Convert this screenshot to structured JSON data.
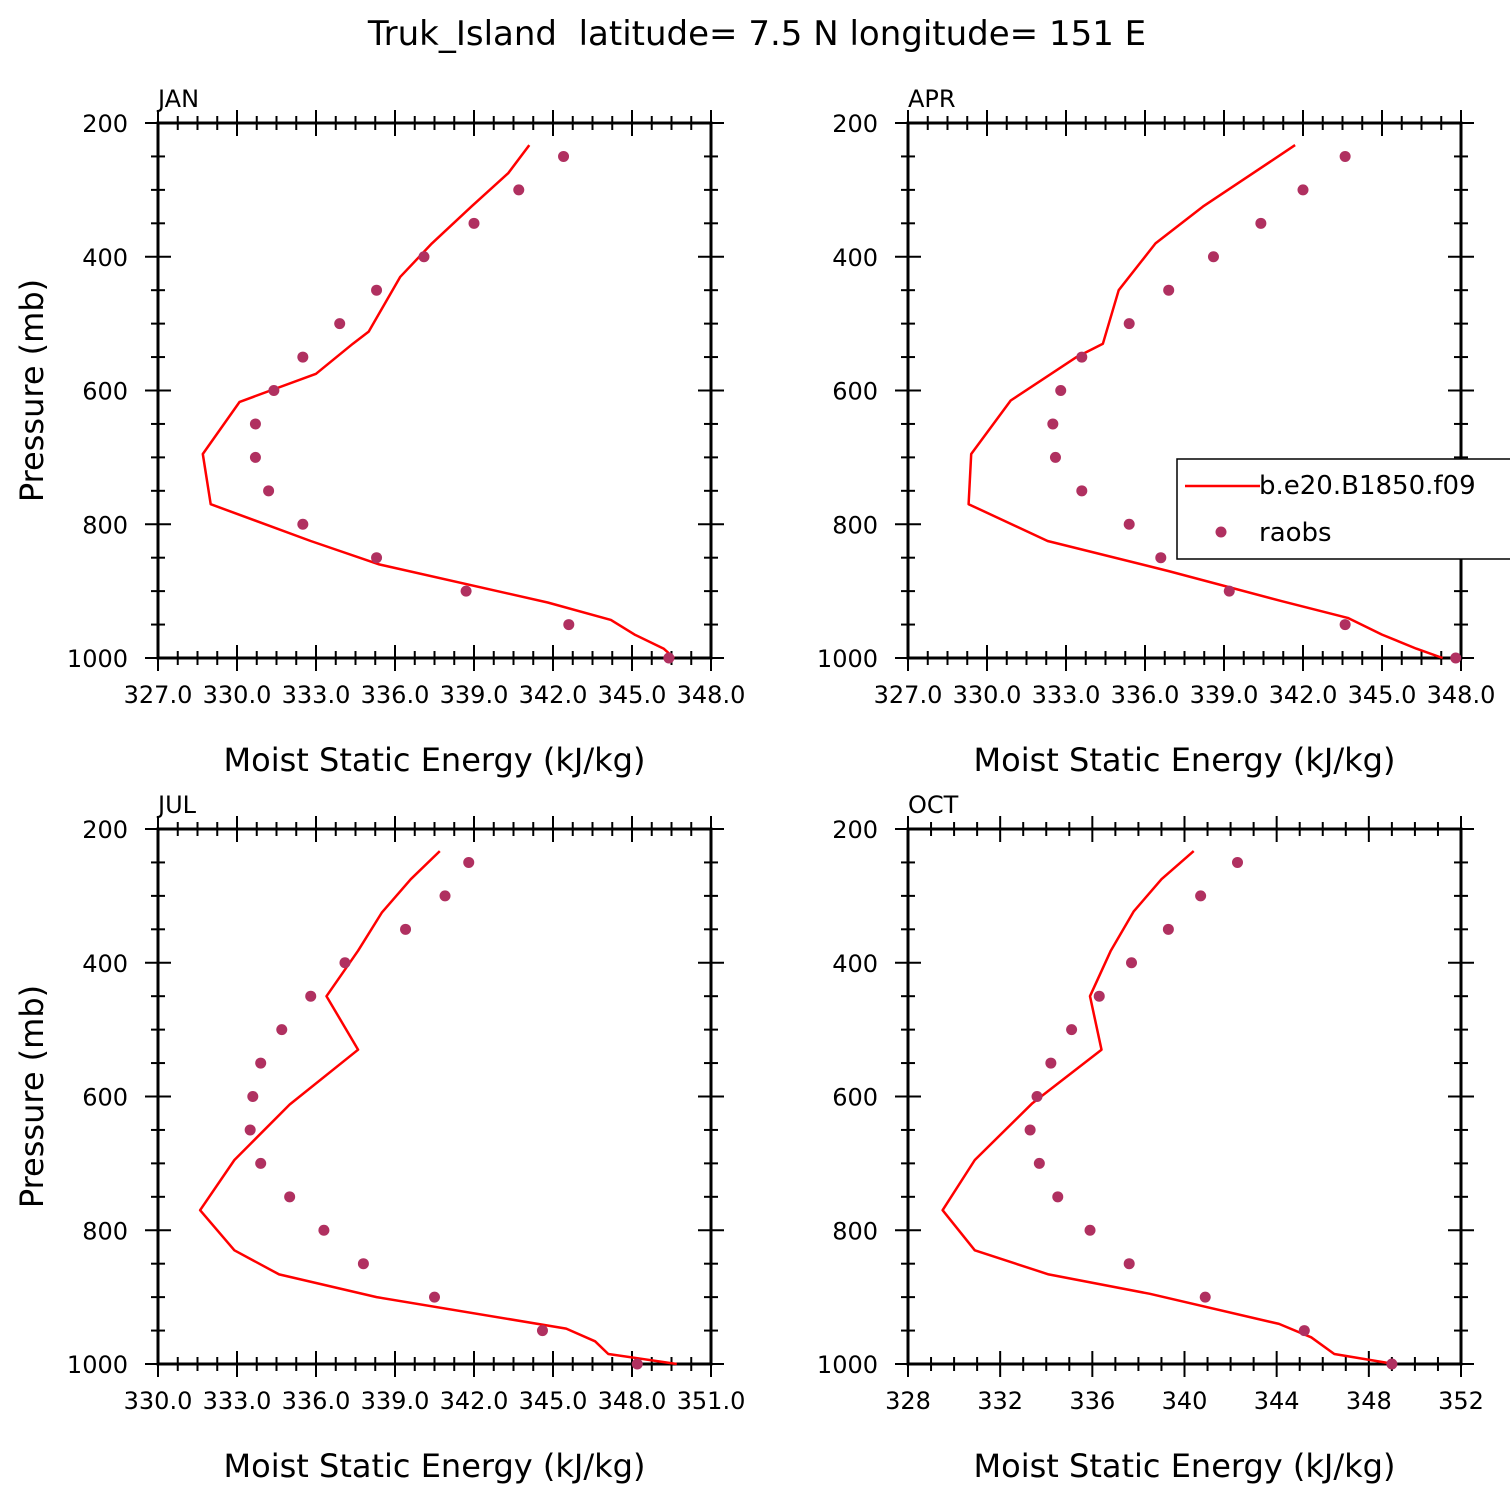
{
  "figure": {
    "title": "Truk_Island  latitude= 7.5 N longitude= 151 E"
  },
  "legend": {
    "model_label": "b.e20.B1850.f09",
    "obs_label": "raobs",
    "panel": 1,
    "placement": "right, mid-height of APR panel (clipped at figure edge)"
  },
  "colors": {
    "model_line": "#ff0000",
    "obs_marker": "#b03060",
    "axes": "#000000"
  },
  "chart_data": [
    {
      "type": "line",
      "panel_label": "JAN",
      "xlabel": "Moist Static Energy (kJ/kg)",
      "ylabel": "Pressure (mb)",
      "xlim": [
        327,
        348
      ],
      "ylim": [
        1000,
        200
      ],
      "y_inverted": true,
      "xticks": [
        327,
        330,
        333,
        336,
        339,
        342,
        345,
        348
      ],
      "xtick_labels": [
        "327.0",
        "330.0",
        "333.0",
        "336.0",
        "339.0",
        "342.0",
        "345.0",
        "348.0"
      ],
      "yticks": [
        200,
        400,
        600,
        800,
        1000
      ],
      "series": [
        {
          "name": "b.e20.B1850.f09",
          "kind": "line",
          "points": [
            [
              341.1,
              233
            ],
            [
              340.3,
              275
            ],
            [
              338.9,
              325
            ],
            [
              337.4,
              380
            ],
            [
              336.2,
              430
            ],
            [
              335.0,
              512
            ],
            [
              334.4,
              530
            ],
            [
              333.0,
              575
            ],
            [
              330.1,
              617
            ],
            [
              328.7,
              695
            ],
            [
              329.0,
              770
            ],
            [
              332.8,
              825
            ],
            [
              335.4,
              860
            ],
            [
              341.8,
              917
            ],
            [
              344.2,
              943
            ],
            [
              345.1,
              965
            ],
            [
              346.2,
              986
            ],
            [
              346.6,
              1000
            ]
          ]
        },
        {
          "name": "raobs",
          "kind": "scatter",
          "points": [
            [
              342.4,
              250
            ],
            [
              340.7,
              300
            ],
            [
              339.0,
              350
            ],
            [
              337.1,
              400
            ],
            [
              335.3,
              450
            ],
            [
              333.9,
              500
            ],
            [
              332.5,
              550
            ],
            [
              331.4,
              600
            ],
            [
              330.7,
              650
            ],
            [
              330.7,
              700
            ],
            [
              331.2,
              750
            ],
            [
              332.5,
              800
            ],
            [
              335.3,
              850
            ],
            [
              338.7,
              900
            ],
            [
              342.6,
              950
            ],
            [
              346.4,
              1000
            ]
          ]
        }
      ]
    },
    {
      "type": "line",
      "panel_label": "APR",
      "xlabel": "Moist Static Energy (kJ/kg)",
      "ylabel": "",
      "xlim": [
        327,
        348
      ],
      "ylim": [
        1000,
        200
      ],
      "y_inverted": true,
      "xticks": [
        327,
        330,
        333,
        336,
        339,
        342,
        345,
        348
      ],
      "xtick_labels": [
        "327.0",
        "330.0",
        "333.0",
        "336.0",
        "339.0",
        "342.0",
        "345.0",
        "348.0"
      ],
      "yticks": [
        200,
        400,
        600,
        800,
        1000
      ],
      "series": [
        {
          "name": "b.e20.B1850.f09",
          "kind": "line",
          "points": [
            [
              341.7,
              233
            ],
            [
              340.1,
              275
            ],
            [
              338.2,
              325
            ],
            [
              336.4,
              380
            ],
            [
              335.0,
              450
            ],
            [
              334.4,
              530
            ],
            [
              333.4,
              550
            ],
            [
              330.9,
              615
            ],
            [
              329.4,
              695
            ],
            [
              329.3,
              770
            ],
            [
              332.3,
              825
            ],
            [
              336.9,
              870
            ],
            [
              341.2,
              915
            ],
            [
              343.7,
              940
            ],
            [
              345.0,
              965
            ],
            [
              346.3,
              986
            ],
            [
              347.3,
              1000
            ]
          ]
        },
        {
          "name": "raobs",
          "kind": "scatter",
          "points": [
            [
              343.6,
              250
            ],
            [
              342.0,
              300
            ],
            [
              340.4,
              350
            ],
            [
              338.6,
              400
            ],
            [
              336.9,
              450
            ],
            [
              335.4,
              500
            ],
            [
              333.6,
              550
            ],
            [
              332.8,
              600
            ],
            [
              332.5,
              650
            ],
            [
              332.6,
              700
            ],
            [
              333.6,
              750
            ],
            [
              335.4,
              800
            ],
            [
              336.6,
              850
            ],
            [
              339.2,
              900
            ],
            [
              343.6,
              950
            ],
            [
              347.8,
              1000
            ]
          ]
        }
      ]
    },
    {
      "type": "line",
      "panel_label": "JUL",
      "xlabel": "Moist Static Energy (kJ/kg)",
      "ylabel": "Pressure (mb)",
      "xlim": [
        330,
        351
      ],
      "ylim": [
        1000,
        200
      ],
      "y_inverted": true,
      "xticks": [
        330,
        333,
        336,
        339,
        342,
        345,
        348,
        351
      ],
      "xtick_labels": [
        "330.0",
        "333.0",
        "336.0",
        "339.0",
        "342.0",
        "345.0",
        "348.0",
        "351.0"
      ],
      "yticks": [
        200,
        400,
        600,
        800,
        1000
      ],
      "series": [
        {
          "name": "b.e20.B1850.f09",
          "kind": "line",
          "points": [
            [
              340.7,
              233
            ],
            [
              339.6,
              275
            ],
            [
              338.5,
              325
            ],
            [
              337.6,
              382
            ],
            [
              336.4,
              450
            ],
            [
              337.6,
              530
            ],
            [
              335.0,
              612
            ],
            [
              332.9,
              695
            ],
            [
              331.6,
              770
            ],
            [
              332.9,
              830
            ],
            [
              334.6,
              866
            ],
            [
              338.3,
              900
            ],
            [
              345.5,
              947
            ],
            [
              346.6,
              966
            ],
            [
              347.1,
              985
            ],
            [
              349.7,
              1000
            ]
          ]
        },
        {
          "name": "raobs",
          "kind": "scatter",
          "points": [
            [
              341.8,
              250
            ],
            [
              340.9,
              300
            ],
            [
              339.4,
              350
            ],
            [
              337.1,
              400
            ],
            [
              335.8,
              450
            ],
            [
              334.7,
              500
            ],
            [
              333.9,
              550
            ],
            [
              333.6,
              600
            ],
            [
              333.5,
              650
            ],
            [
              333.9,
              700
            ],
            [
              335.0,
              750
            ],
            [
              336.3,
              800
            ],
            [
              337.8,
              850
            ],
            [
              340.5,
              900
            ],
            [
              344.6,
              950
            ],
            [
              348.2,
              1000
            ]
          ]
        }
      ]
    },
    {
      "type": "line",
      "panel_label": "OCT",
      "xlabel": "Moist Static Energy (kJ/kg)",
      "ylabel": "",
      "xlim": [
        328,
        352
      ],
      "ylim": [
        1000,
        200
      ],
      "y_inverted": true,
      "xticks": [
        328,
        332,
        336,
        340,
        344,
        348,
        352
      ],
      "xtick_labels": [
        "328",
        "332",
        "336",
        "340",
        "344",
        "348",
        "352"
      ],
      "yticks": [
        200,
        400,
        600,
        800,
        1000
      ],
      "series": [
        {
          "name": "b.e20.B1850.f09",
          "kind": "line",
          "points": [
            [
              340.4,
              233
            ],
            [
              339.0,
              275
            ],
            [
              337.8,
              323
            ],
            [
              336.8,
              382
            ],
            [
              335.9,
              450
            ],
            [
              336.4,
              530
            ],
            [
              333.4,
              610
            ],
            [
              330.9,
              695
            ],
            [
              329.5,
              770
            ],
            [
              330.9,
              830
            ],
            [
              334.1,
              866
            ],
            [
              338.5,
              895
            ],
            [
              344.1,
              940
            ],
            [
              345.5,
              960
            ],
            [
              346.5,
              985
            ],
            [
              349.1,
              1000
            ]
          ]
        },
        {
          "name": "raobs",
          "kind": "scatter",
          "points": [
            [
              342.3,
              250
            ],
            [
              340.7,
              300
            ],
            [
              339.3,
              350
            ],
            [
              337.7,
              400
            ],
            [
              336.3,
              450
            ],
            [
              335.1,
              500
            ],
            [
              334.2,
              550
            ],
            [
              333.6,
              600
            ],
            [
              333.3,
              650
            ],
            [
              333.7,
              700
            ],
            [
              334.5,
              750
            ],
            [
              335.9,
              800
            ],
            [
              337.6,
              850
            ],
            [
              340.9,
              900
            ],
            [
              345.2,
              950
            ],
            [
              349.0,
              1000
            ]
          ]
        }
      ]
    }
  ]
}
